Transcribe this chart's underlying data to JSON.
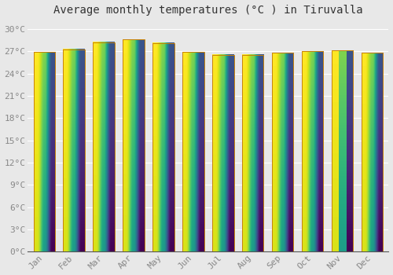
{
  "title": "Average monthly temperatures (°C ) in Tiruvalla",
  "months": [
    "Jan",
    "Feb",
    "Mar",
    "Apr",
    "May",
    "Jun",
    "Jul",
    "Aug",
    "Sep",
    "Oct",
    "Nov",
    "Dec"
  ],
  "temperatures": [
    26.9,
    27.3,
    28.2,
    28.6,
    28.1,
    26.9,
    26.5,
    26.5,
    26.8,
    27.0,
    27.1,
    26.8
  ],
  "bar_color_top": "#FFD04A",
  "bar_color_bottom": "#F0900A",
  "bar_edge_color": "#C8820A",
  "ylim": [
    0,
    31
  ],
  "yticks": [
    0,
    3,
    6,
    9,
    12,
    15,
    18,
    21,
    24,
    27,
    30
  ],
  "ytick_labels": [
    "0°C",
    "3°C",
    "6°C",
    "9°C",
    "12°C",
    "15°C",
    "18°C",
    "21°C",
    "24°C",
    "27°C",
    "30°C"
  ],
  "background_color": "#e8e8e8",
  "grid_color": "#ffffff",
  "title_fontsize": 10,
  "tick_fontsize": 8,
  "tick_color": "#888888",
  "title_color": "#333333"
}
